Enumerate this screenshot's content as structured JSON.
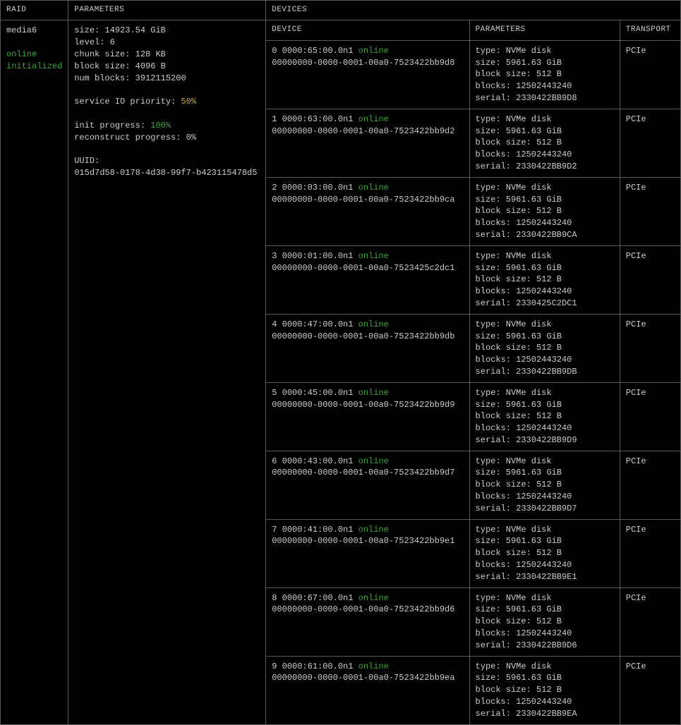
{
  "colors": {
    "background": "#000000",
    "text": "#cccccc",
    "border": "#5a5a5a",
    "green": "#39a939",
    "yellow": "#c5a83a"
  },
  "headers": {
    "raid": "RAID",
    "parameters": "PARAMETERS",
    "devices": "DEVICES",
    "device": "DEVICE",
    "dev_parameters": "PARAMETERS",
    "transport": "TRANSPORT"
  },
  "raid": {
    "name": "media6",
    "status_online": "online",
    "status_init": "initialized",
    "params": {
      "size": "size: 14923.54 GiB",
      "level": "level: 6",
      "chunk_size": "chunk size: 128 KB",
      "block_size": "block size: 4096 B",
      "num_blocks": "num blocks: 3912115200",
      "service_io_label": "service IO priority: ",
      "service_io_pct": "50%",
      "init_progress_label": "init progress: ",
      "init_progress_pct": "100%",
      "reconstruct": "reconstruct progress: 0%",
      "uuid_label": "UUID:",
      "uuid_value": "015d7d58-0178-4d38-99f7-b423115478d5"
    }
  },
  "devices": [
    {
      "idx_name": "0 0000:65:00.0n1",
      "status": "online",
      "wwn": "00000000-0000-0001-00a0-7523422bb9d8",
      "type": "type: NVMe disk",
      "size": "size: 5961.63 GiB",
      "block_size": "block size: 512 B",
      "blocks": "blocks: 12502443240",
      "serial": "serial: 2330422BB9D8",
      "transport": "PCIe"
    },
    {
      "idx_name": "1 0000:63:00.0n1",
      "status": "online",
      "wwn": "00000000-0000-0001-00a0-7523422bb9d2",
      "type": "type: NVMe disk",
      "size": "size: 5961.63 GiB",
      "block_size": "block size: 512 B",
      "blocks": "blocks: 12502443240",
      "serial": "serial: 2330422BB9D2",
      "transport": "PCIe"
    },
    {
      "idx_name": "2 0000:03:00.0n1",
      "status": "online",
      "wwn": "00000000-0000-0001-00a0-7523422bb9ca",
      "type": "type: NVMe disk",
      "size": "size: 5961.63 GiB",
      "block_size": "block size: 512 B",
      "blocks": "blocks: 12502443240",
      "serial": "serial: 2330422BB9CA",
      "transport": "PCIe"
    },
    {
      "idx_name": "3 0000:01:00.0n1",
      "status": "online",
      "wwn": "00000000-0000-0001-00a0-7523425c2dc1",
      "type": "type: NVMe disk",
      "size": "size: 5961.63 GiB",
      "block_size": "block size: 512 B",
      "blocks": "blocks: 12502443240",
      "serial": "serial: 2330425C2DC1",
      "transport": "PCIe"
    },
    {
      "idx_name": "4 0000:47:00.0n1",
      "status": "online",
      "wwn": "00000000-0000-0001-00a0-7523422bb9db",
      "type": "type: NVMe disk",
      "size": "size: 5961.63 GiB",
      "block_size": "block size: 512 B",
      "blocks": "blocks: 12502443240",
      "serial": "serial: 2330422BB9DB",
      "transport": "PCIe"
    },
    {
      "idx_name": "5 0000:45:00.0n1",
      "status": "online",
      "wwn": "00000000-0000-0001-00a0-7523422bb9d9",
      "type": "type: NVMe disk",
      "size": "size: 5961.63 GiB",
      "block_size": "block size: 512 B",
      "blocks": "blocks: 12502443240",
      "serial": "serial: 2330422BB9D9",
      "transport": "PCIe"
    },
    {
      "idx_name": "6 0000:43:00.0n1",
      "status": "online",
      "wwn": "00000000-0000-0001-00a0-7523422bb9d7",
      "type": "type: NVMe disk",
      "size": "size: 5961.63 GiB",
      "block_size": "block size: 512 B",
      "blocks": "blocks: 12502443240",
      "serial": "serial: 2330422BB9D7",
      "transport": "PCIe"
    },
    {
      "idx_name": "7 0000:41:00.0n1",
      "status": "online",
      "wwn": "00000000-0000-0001-00a0-7523422bb9e1",
      "type": "type: NVMe disk",
      "size": "size: 5961.63 GiB",
      "block_size": "block size: 512 B",
      "blocks": "blocks: 12502443240",
      "serial": "serial: 2330422BB9E1",
      "transport": "PCIe"
    },
    {
      "idx_name": "8 0000:67:00.0n1",
      "status": "online",
      "wwn": "00000000-0000-0001-00a0-7523422bb9d6",
      "type": "type: NVMe disk",
      "size": "size: 5961.63 GiB",
      "block_size": "block size: 512 B",
      "blocks": "blocks: 12502443240",
      "serial": "serial: 2330422BB9D6",
      "transport": "PCIe"
    },
    {
      "idx_name": "9 0000:61:00.0n1",
      "status": "online",
      "wwn": "00000000-0000-0001-00a0-7523422bb9ea",
      "type": "type: NVMe disk",
      "size": "size: 5961.63 GiB",
      "block_size": "block size: 512 B",
      "blocks": "blocks: 12502443240",
      "serial": "serial: 2330422BB9EA",
      "transport": "PCIe"
    }
  ]
}
